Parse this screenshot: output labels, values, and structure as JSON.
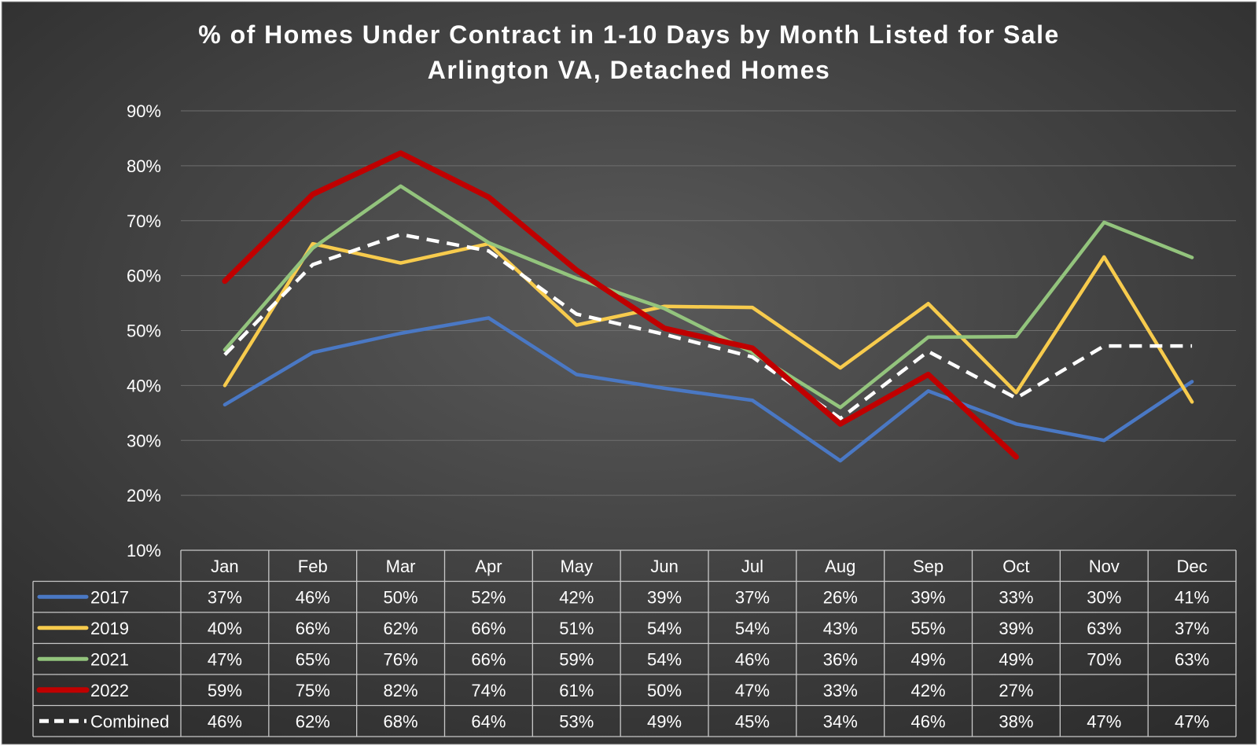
{
  "chart_data": {
    "type": "line",
    "title_line1": "% of Homes Under Contract in 1-10 Days by Month Listed for Sale",
    "title_line2": "Arlington VA, Detached Homes",
    "xlabel": "",
    "ylabel": "",
    "ylim": [
      10,
      90
    ],
    "y_ticks": [
      "90%",
      "80%",
      "70%",
      "60%",
      "50%",
      "40%",
      "30%",
      "20%",
      "10%"
    ],
    "y_tick_values": [
      90,
      80,
      70,
      60,
      50,
      40,
      30,
      20,
      10
    ],
    "grid": true,
    "legend": "data-table-left",
    "categories": [
      "Jan",
      "Feb",
      "Mar",
      "Apr",
      "May",
      "Jun",
      "Jul",
      "Aug",
      "Sep",
      "Oct",
      "Nov",
      "Dec"
    ],
    "series": [
      {
        "name": "2017",
        "color": "#4a78c4",
        "dashed": false,
        "values": [
          36.5,
          46,
          49.5,
          52.3,
          42,
          39.5,
          37.3,
          26.3,
          39,
          33,
          30,
          40.7
        ],
        "labels": [
          "37%",
          "46%",
          "50%",
          "52%",
          "42%",
          "39%",
          "37%",
          "26%",
          "39%",
          "33%",
          "30%",
          "41%"
        ]
      },
      {
        "name": "2019",
        "color": "#f7cb4d",
        "dashed": false,
        "values": [
          40,
          65.8,
          62.3,
          65.8,
          51,
          54.4,
          54.2,
          43.2,
          54.9,
          38.7,
          63.4,
          37
        ],
        "labels": [
          "40%",
          "66%",
          "62%",
          "66%",
          "51%",
          "54%",
          "54%",
          "43%",
          "55%",
          "39%",
          "63%",
          "37%"
        ]
      },
      {
        "name": "2021",
        "color": "#93c47d",
        "dashed": false,
        "values": [
          46.5,
          65,
          76.3,
          66,
          59.5,
          54,
          46,
          36,
          48.8,
          48.9,
          69.7,
          63.3
        ],
        "labels": [
          "47%",
          "65%",
          "76%",
          "66%",
          "59%",
          "54%",
          "46%",
          "36%",
          "49%",
          "49%",
          "70%",
          "63%"
        ]
      },
      {
        "name": "2022",
        "color": "#c00000",
        "dashed": false,
        "values": [
          59,
          74.8,
          82.3,
          74.3,
          61,
          50.4,
          46.8,
          33,
          42,
          27,
          null,
          null
        ],
        "labels": [
          "59%",
          "75%",
          "82%",
          "74%",
          "61%",
          "50%",
          "47%",
          "33%",
          "42%",
          "27%",
          "",
          ""
        ]
      },
      {
        "name": "Combined",
        "color": "#ffffff",
        "dashed": true,
        "values": [
          45.6,
          62,
          67.5,
          64.5,
          53,
          49.3,
          45.2,
          34,
          46.2,
          37.7,
          47.2,
          47.2
        ],
        "labels": [
          "46%",
          "62%",
          "68%",
          "64%",
          "53%",
          "49%",
          "45%",
          "34%",
          "46%",
          "38%",
          "47%",
          "47%"
        ]
      }
    ]
  }
}
